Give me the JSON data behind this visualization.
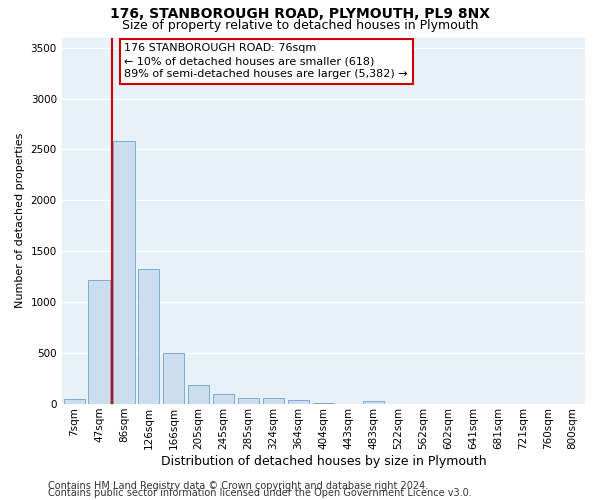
{
  "title1": "176, STANBOROUGH ROAD, PLYMOUTH, PL9 8NX",
  "title2": "Size of property relative to detached houses in Plymouth",
  "xlabel": "Distribution of detached houses by size in Plymouth",
  "ylabel": "Number of detached properties",
  "bar_color": "#ccddf0",
  "bar_edge_color": "#7aadd4",
  "background_color": "#e8f0f8",
  "grid_color": "#ffffff",
  "categories": [
    "7sqm",
    "47sqm",
    "86sqm",
    "126sqm",
    "166sqm",
    "205sqm",
    "245sqm",
    "285sqm",
    "324sqm",
    "364sqm",
    "404sqm",
    "443sqm",
    "483sqm",
    "522sqm",
    "562sqm",
    "602sqm",
    "641sqm",
    "681sqm",
    "721sqm",
    "760sqm",
    "800sqm"
  ],
  "values": [
    50,
    1220,
    2580,
    1330,
    500,
    185,
    100,
    55,
    55,
    35,
    8,
    5,
    30,
    0,
    0,
    0,
    0,
    0,
    0,
    0,
    0
  ],
  "ylim": [
    0,
    3600
  ],
  "yticks": [
    0,
    500,
    1000,
    1500,
    2000,
    2500,
    3000,
    3500
  ],
  "vline_x": 1.5,
  "vline_color": "#cc0000",
  "annotation_line1": "176 STANBOROUGH ROAD: 76sqm",
  "annotation_line2": "← 10% of detached houses are smaller (618)",
  "annotation_line3": "89% of semi-detached houses are larger (5,382) →",
  "annotation_box_color": "#ffffff",
  "annotation_box_edge": "#cc0000",
  "footer1": "Contains HM Land Registry data © Crown copyright and database right 2024.",
  "footer2": "Contains public sector information licensed under the Open Government Licence v3.0.",
  "title1_fontsize": 10,
  "title2_fontsize": 9,
  "xlabel_fontsize": 9,
  "ylabel_fontsize": 8,
  "tick_fontsize": 7.5,
  "annotation_fontsize": 8,
  "footer_fontsize": 7
}
